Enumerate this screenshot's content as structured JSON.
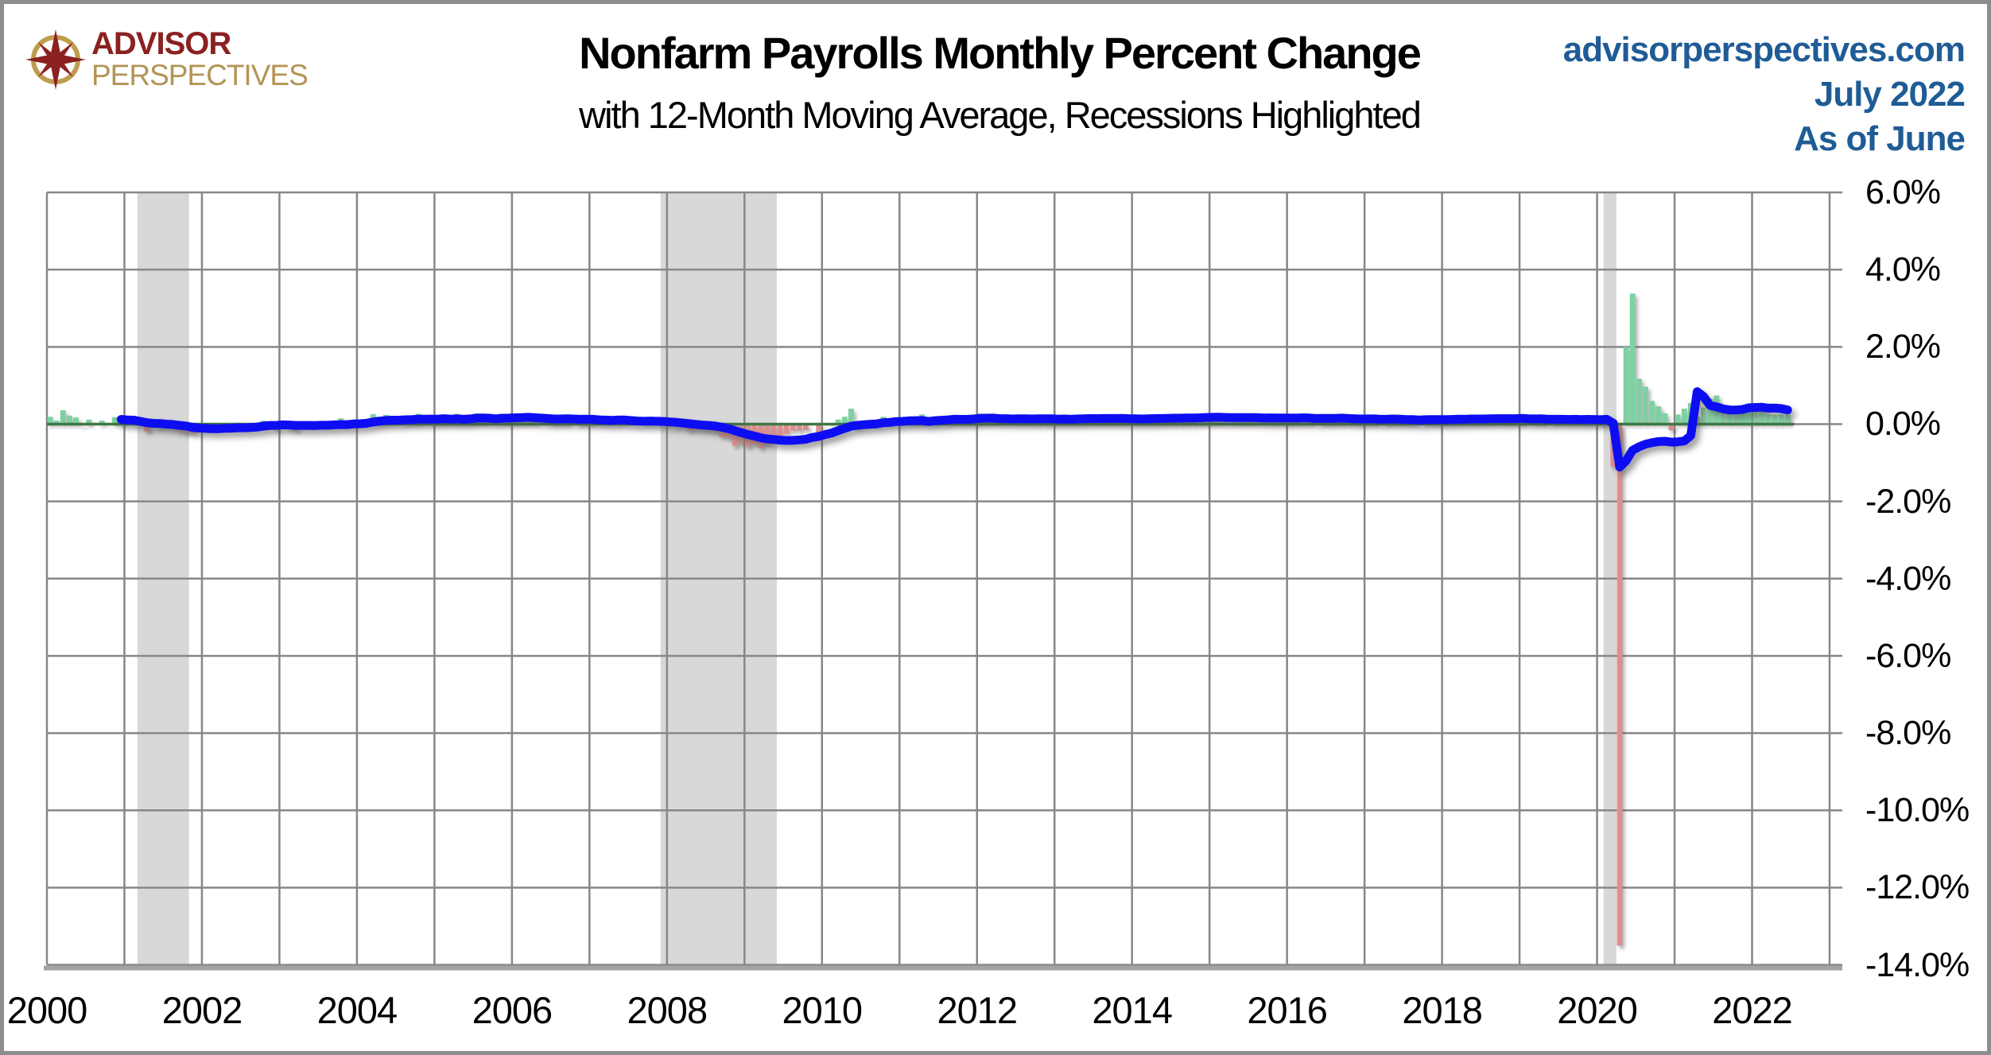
{
  "header": {
    "logo": {
      "line1": "ADVISOR",
      "line2": "PERSPECTIVES",
      "icon": "compass-star-icon",
      "colors": {
        "maroon": "#8b2121",
        "gold": "#b39455"
      }
    },
    "title": "Nonfarm Payrolls Monthly Percent Change",
    "subtitle": "with 12-Month Moving Average, Recessions Highlighted",
    "source": {
      "site": "advisorperspectives.com",
      "date": "July 2022",
      "asof": "As of June",
      "color": "#1f5c96"
    }
  },
  "colors": {
    "bar_positive": "#7fd0a2",
    "bar_negative": "#dc8f8f",
    "ma_line": "#0d0df2",
    "zero_line": "#3f7745",
    "gridline": "#878787",
    "recession_band": "#d8d8d8",
    "axis_bottom": "#a3a3a3"
  },
  "chart_data": {
    "type": "bar",
    "title": "Nonfarm Payrolls Monthly Percent Change",
    "subtitle": "with 12-Month Moving Average, Recessions Highlighted",
    "xlabel": "",
    "ylabel": "",
    "xlim": [
      2000,
      2023
    ],
    "ylim": [
      -14,
      6
    ],
    "grid": true,
    "y_tick_values": [
      6,
      4,
      2,
      0,
      -2,
      -4,
      -6,
      -8,
      -10,
      -12,
      -14
    ],
    "y_tick_labels": [
      "6.0%",
      "4.0%",
      "2.0%",
      "0.0%",
      "-2.0%",
      "-4.0%",
      "-6.0%",
      "-8.0%",
      "-10.0%",
      "-12.0%",
      "-14.0%"
    ],
    "x_tick_values": [
      2000,
      2002,
      2004,
      2006,
      2008,
      2010,
      2012,
      2014,
      2016,
      2018,
      2020,
      2022
    ],
    "x_tick_labels": [
      "2000",
      "2002",
      "2004",
      "2006",
      "2008",
      "2010",
      "2012",
      "2014",
      "2016",
      "2018",
      "2020",
      "2022"
    ],
    "start_month": "2000-01",
    "end_month": "2022-06",
    "series": [
      {
        "name": "Monthly percent change",
        "role": "bars"
      },
      {
        "name": "12-Month Moving Average",
        "role": "line",
        "derivation": "trailing 12-month mean of monthly values"
      }
    ],
    "monthly_pct_change": [
      0.19,
      0.09,
      0.36,
      0.22,
      0.17,
      -0.04,
      0.12,
      0.0,
      0.09,
      -0.01,
      0.18,
      0.11,
      -0.02,
      0.04,
      -0.02,
      -0.19,
      -0.02,
      -0.09,
      -0.08,
      -0.1,
      -0.17,
      -0.22,
      -0.23,
      -0.11,
      -0.1,
      -0.08,
      -0.02,
      -0.06,
      0.0,
      0.03,
      -0.07,
      -0.02,
      -0.05,
      0.09,
      0.0,
      -0.12,
      0.07,
      -0.12,
      -0.16,
      -0.04,
      -0.01,
      0.0,
      0.02,
      -0.03,
      0.08,
      0.15,
      0.01,
      0.09,
      0.12,
      0.03,
      0.26,
      0.19,
      0.24,
      0.06,
      0.03,
      0.1,
      0.12,
      0.27,
      0.05,
      0.1,
      0.1,
      0.18,
      0.1,
      0.27,
      0.13,
      0.18,
      0.28,
      0.15,
      0.05,
      0.06,
      0.25,
      0.12,
      0.2,
      0.23,
      0.21,
      0.13,
      0.01,
      0.05,
      0.15,
      0.14,
      0.12,
      0.0,
      0.15,
      0.13,
      0.17,
      0.06,
      0.14,
      0.06,
      0.1,
      0.05,
      -0.02,
      -0.01,
      0.06,
      0.06,
      0.09,
      0.07,
      0.01,
      -0.06,
      -0.06,
      -0.16,
      -0.13,
      -0.13,
      -0.15,
      -0.19,
      -0.33,
      -0.35,
      -0.56,
      -0.51,
      -0.59,
      -0.52,
      -0.62,
      -0.52,
      -0.27,
      -0.36,
      -0.25,
      -0.17,
      -0.17,
      -0.15,
      0.0,
      -0.22,
      0.01,
      -0.04,
      0.12,
      0.19,
      0.4,
      -0.09,
      -0.05,
      -0.03,
      -0.04,
      0.19,
      0.11,
      0.05,
      0.05,
      0.13,
      0.16,
      0.25,
      0.08,
      0.17,
      0.08,
      0.09,
      0.17,
      0.14,
      0.13,
      0.15,
      0.27,
      0.17,
      0.18,
      0.07,
      0.08,
      0.07,
      0.12,
      0.11,
      0.12,
      0.17,
      0.15,
      0.16,
      0.15,
      0.21,
      0.1,
      0.15,
      0.16,
      0.13,
      0.11,
      0.15,
      0.12,
      0.17,
      0.2,
      0.06,
      0.1,
      0.16,
      0.15,
      0.22,
      0.17,
      0.19,
      0.17,
      0.15,
      0.19,
      0.17,
      0.23,
      0.18,
      0.14,
      0.19,
      0.06,
      0.18,
      0.19,
      0.16,
      0.19,
      0.11,
      0.1,
      0.21,
      0.2,
      0.19,
      0.12,
      0.16,
      0.16,
      0.11,
      0.03,
      0.21,
      0.2,
      0.12,
      0.17,
      0.09,
      0.11,
      0.11,
      0.15,
      0.16,
      0.03,
      0.14,
      0.1,
      0.14,
      0.1,
      0.14,
      0.01,
      0.19,
      0.15,
      0.12,
      0.12,
      0.22,
      0.1,
      0.12,
      0.18,
      0.14,
      0.11,
      0.18,
      0.08,
      0.19,
      0.13,
      0.15,
      0.21,
      0.04,
      0.1,
      0.14,
      0.04,
      0.12,
      0.11,
      0.14,
      0.14,
      0.12,
      0.17,
      0.12,
      0.14,
      0.17,
      -1.11,
      -13.5,
      2.0,
      3.38,
      1.18,
      0.97,
      0.6,
      0.46,
      0.28,
      -0.16,
      0.25,
      0.4,
      0.55,
      0.19,
      0.43,
      0.66,
      0.74,
      0.33,
      0.28,
      0.44,
      0.43,
      0.39,
      0.34,
      0.47,
      0.26,
      0.24,
      0.25,
      0.25
    ],
    "recessions": [
      {
        "start": "2001-03",
        "end": "2001-11",
        "x_start": 2001.167,
        "x_end": 2001.833
      },
      {
        "start": "2007-12",
        "end": "2009-06",
        "x_start": 2007.917,
        "x_end": 2009.417
      },
      {
        "start": "2020-02",
        "end": "2020-04",
        "x_start": 2020.083,
        "x_end": 2020.25
      }
    ],
    "legend_position": "none"
  }
}
